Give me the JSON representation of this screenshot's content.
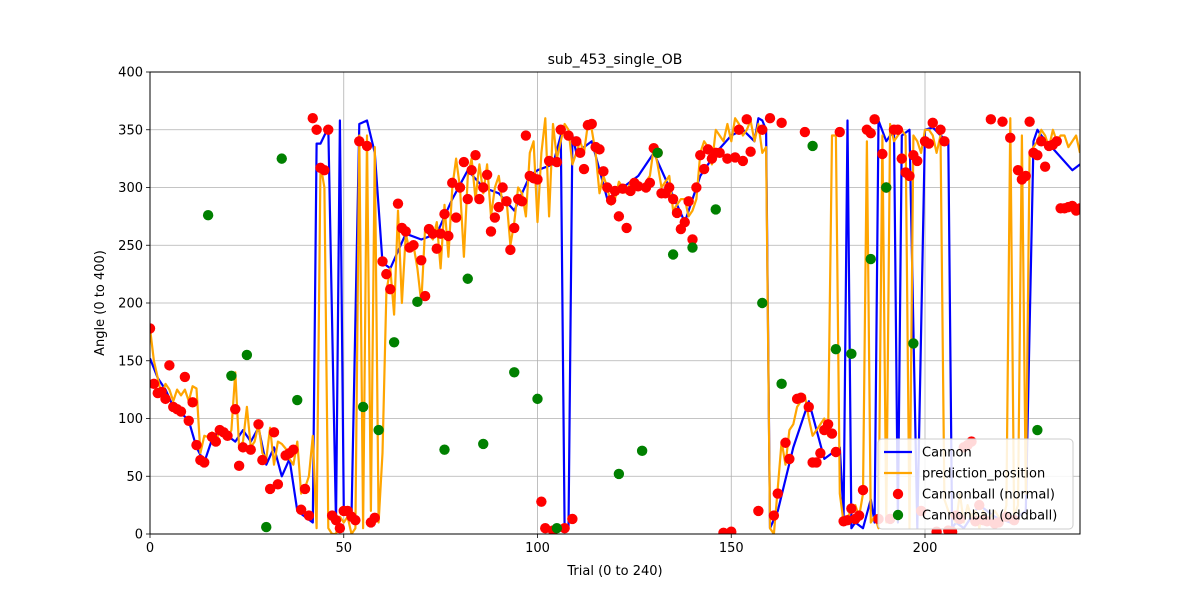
{
  "chart_data": {
    "type": "line",
    "title": "sub_453_single_OB",
    "xlabel": "Trial (0 to 240)",
    "ylabel": "Angle (0 to 400)",
    "xlim": [
      0,
      240
    ],
    "ylim": [
      0,
      400
    ],
    "xticks": [
      0,
      50,
      100,
      150,
      200
    ],
    "yticks": [
      0,
      50,
      100,
      150,
      200,
      250,
      300,
      350,
      400
    ],
    "grid": true,
    "legend_position": "bottom-right",
    "series": [
      {
        "name": "Cannon",
        "kind": "line",
        "color": "#0000ff",
        "x": [
          0,
          2,
          4,
          6,
          8,
          10,
          12,
          14,
          16,
          18,
          20,
          22,
          24,
          26,
          28,
          30,
          32,
          34,
          36,
          38,
          40,
          42,
          43,
          44,
          46,
          48,
          49,
          50,
          52,
          54,
          56,
          58,
          60,
          62,
          66,
          70,
          74,
          78,
          82,
          86,
          90,
          94,
          98,
          100,
          104,
          106,
          107,
          108,
          109,
          110,
          114,
          118,
          122,
          126,
          130,
          134,
          138,
          142,
          146,
          150,
          153,
          156,
          157,
          158,
          159,
          160,
          162,
          166,
          170,
          174,
          178,
          179,
          180,
          181,
          182,
          184,
          186,
          187,
          188,
          190,
          192,
          193,
          194,
          196,
          198,
          200,
          202,
          204,
          206,
          207,
          208,
          210,
          214,
          218,
          222,
          226,
          228,
          229,
          230,
          234,
          238,
          240
        ],
        "y": [
          152,
          135,
          125,
          110,
          105,
          98,
          75,
          62,
          82,
          90,
          85,
          80,
          90,
          80,
          92,
          60,
          75,
          50,
          65,
          20,
          15,
          10,
          338,
          338,
          352,
          10,
          358,
          20,
          15,
          355,
          358,
          330,
          235,
          230,
          260,
          255,
          260,
          290,
          315,
          300,
          295,
          280,
          310,
          315,
          320,
          345,
          5,
          5,
          345,
          330,
          340,
          290,
          300,
          310,
          330,
          300,
          270,
          310,
          330,
          345,
          350,
          340,
          360,
          358,
          350,
          5,
          20,
          75,
          115,
          65,
          75,
          15,
          358,
          5,
          10,
          5,
          30,
          10,
          358,
          340,
          350,
          10,
          345,
          350,
          5,
          350,
          352,
          345,
          340,
          5,
          10,
          5,
          25,
          15,
          10,
          20,
          340,
          350,
          345,
          330,
          315,
          320
        ]
      },
      {
        "name": "prediction_position",
        "kind": "line",
        "color": "#ffa500",
        "x": [
          0,
          1,
          2,
          3,
          4,
          5,
          6,
          7,
          8,
          9,
          10,
          11,
          12,
          13,
          14,
          15,
          16,
          17,
          18,
          19,
          20,
          21,
          22,
          23,
          24,
          25,
          26,
          27,
          28,
          29,
          30,
          31,
          32,
          33,
          34,
          35,
          36,
          37,
          38,
          39,
          40,
          41,
          42,
          43,
          44,
          45,
          46,
          47,
          48,
          49,
          50,
          51,
          52,
          53,
          54,
          55,
          56,
          57,
          58,
          59,
          60,
          61,
          62,
          63,
          64,
          65,
          66,
          67,
          68,
          69,
          70,
          71,
          72,
          73,
          74,
          75,
          76,
          77,
          78,
          79,
          80,
          81,
          82,
          83,
          84,
          85,
          86,
          87,
          88,
          89,
          90,
          91,
          92,
          93,
          94,
          95,
          96,
          97,
          98,
          99,
          100,
          101,
          102,
          103,
          104,
          105,
          106,
          107,
          108,
          109,
          110,
          111,
          112,
          113,
          114,
          115,
          116,
          117,
          118,
          119,
          120,
          121,
          122,
          123,
          124,
          125,
          126,
          127,
          128,
          129,
          130,
          131,
          132,
          133,
          134,
          135,
          136,
          137,
          138,
          139,
          140,
          141,
          142,
          143,
          144,
          145,
          146,
          147,
          148,
          149,
          150,
          151,
          152,
          153,
          154,
          155,
          156,
          157,
          158,
          159,
          160,
          161,
          162,
          163,
          164,
          165,
          166,
          167,
          168,
          169,
          170,
          171,
          172,
          173,
          174,
          175,
          176,
          177,
          178,
          179,
          180,
          181,
          182,
          183,
          184,
          185,
          186,
          187,
          188,
          189,
          190,
          191,
          192,
          193,
          194,
          195,
          196,
          197,
          198,
          199,
          200,
          201,
          202,
          203,
          204,
          205,
          206,
          207,
          208,
          209,
          210,
          211,
          212,
          213,
          214,
          215,
          216,
          217,
          218,
          219,
          220,
          221,
          222,
          223,
          224,
          225,
          226,
          227,
          228,
          229,
          230,
          231,
          232,
          233,
          234,
          235,
          236,
          237,
          238,
          239,
          240
        ],
        "y": [
          178,
          150,
          135,
          120,
          130,
          125,
          115,
          125,
          120,
          125,
          115,
          128,
          126,
          70,
          85,
          84,
          88,
          80,
          90,
          84,
          83,
          90,
          140,
          75,
          80,
          110,
          75,
          80,
          95,
          70,
          65,
          92,
          60,
          80,
          78,
          74,
          65,
          60,
          80,
          35,
          40,
          50,
          85,
          5,
          320,
          300,
          5,
          0,
          0,
          15,
          10,
          15,
          0,
          5,
          345,
          5,
          345,
          20,
          335,
          10,
          70,
          210,
          230,
          190,
          280,
          200,
          260,
          245,
          250,
          230,
          200,
          265,
          260,
          255,
          270,
          230,
          285,
          240,
          300,
          325,
          300,
          240,
          310,
          325,
          290,
          320,
          295,
          320,
          275,
          300,
          310,
          285,
          290,
          250,
          270,
          300,
          295,
          275,
          330,
          340,
          270,
          330,
          360,
          275,
          355,
          325,
          340,
          355,
          350,
          320,
          330,
          340,
          330,
          355,
          350,
          330,
          295,
          310,
          300,
          285,
          290,
          305,
          300,
          295,
          305,
          300,
          305,
          300,
          305,
          310,
          335,
          320,
          300,
          305,
          310,
          280,
          285,
          290,
          290,
          275,
          280,
          290,
          330,
          340,
          335,
          320,
          350,
          345,
          340,
          355,
          340,
          360,
          355,
          345,
          350,
          358,
          340,
          355,
          330,
          335,
          5,
          0,
          40,
          80,
          60,
          90,
          95,
          110,
          115,
          120,
          100,
          85,
          90,
          95,
          100,
          85,
          345,
          345,
          35,
          10,
          15,
          20,
          25,
          15,
          35,
          340,
          10,
          15,
          5,
          345,
          10,
          355,
          340,
          345,
          350,
          345,
          5,
          345,
          340,
          330,
          350,
          350,
          345,
          330,
          345,
          30,
          20,
          15,
          10,
          35,
          10,
          25,
          15,
          20,
          5,
          20,
          10,
          15,
          20,
          15,
          10,
          25,
          360,
          15,
          25,
          345,
          35,
          330,
          335,
          340,
          350,
          345,
          335,
          350,
          340,
          345,
          345,
          335,
          340,
          345,
          330
        ]
      },
      {
        "name": "Cannonball (normal)",
        "kind": "scatter",
        "color": "#ff0000",
        "x": [
          0,
          1,
          2,
          3,
          4,
          5,
          6,
          7,
          8,
          9,
          10,
          11,
          12,
          13,
          14,
          16,
          17,
          18,
          19,
          20,
          22,
          23,
          24,
          26,
          28,
          29,
          31,
          32,
          33,
          35,
          36,
          37,
          39,
          40,
          41,
          42,
          43,
          44,
          45,
          46,
          47,
          48,
          49,
          50,
          51,
          52,
          53,
          54,
          56,
          57,
          58,
          60,
          61,
          62,
          64,
          65,
          66,
          67,
          68,
          70,
          71,
          72,
          73,
          74,
          75,
          76,
          77,
          78,
          79,
          80,
          81,
          82,
          83,
          84,
          85,
          86,
          87,
          88,
          89,
          90,
          91,
          92,
          93,
          94,
          95,
          96,
          97,
          98,
          99,
          100,
          101,
          102,
          103,
          104,
          105,
          106,
          107,
          108,
          109,
          110,
          111,
          112,
          113,
          114,
          115,
          116,
          117,
          118,
          119,
          120,
          121,
          122,
          123,
          124,
          125,
          126,
          128,
          129,
          130,
          131,
          132,
          133,
          134,
          135,
          136,
          137,
          138,
          139,
          140,
          141,
          142,
          143,
          144,
          145,
          146,
          147,
          148,
          149,
          150,
          151,
          152,
          153,
          154,
          155,
          157,
          158,
          160,
          161,
          162,
          163,
          164,
          165,
          167,
          168,
          169,
          170,
          171,
          172,
          173,
          174,
          175,
          176,
          177,
          178,
          179,
          180,
          181,
          182,
          183,
          184,
          185,
          186,
          187,
          188,
          189,
          190,
          191,
          192,
          193,
          194,
          195,
          196,
          197,
          198,
          199,
          200,
          201,
          202,
          203,
          204,
          205,
          206,
          207,
          208,
          209,
          210,
          211,
          212,
          213,
          214,
          215,
          216,
          217,
          218,
          219,
          220,
          221,
          222,
          223,
          224,
          225,
          226,
          227,
          228,
          229,
          230,
          231,
          232,
          233,
          234,
          235,
          236,
          237,
          238,
          239,
          240
        ],
        "y": [
          178,
          130,
          122,
          123,
          117,
          146,
          110,
          108,
          106,
          136,
          98,
          114,
          77,
          64,
          62,
          84,
          80,
          90,
          88,
          85,
          108,
          59,
          75,
          73,
          95,
          64,
          39,
          88,
          43,
          68,
          70,
          73,
          21,
          39,
          16,
          360,
          350,
          317,
          315,
          350,
          16,
          12,
          5,
          20,
          20,
          15,
          12,
          340,
          336,
          10,
          14,
          236,
          225,
          212,
          286,
          265,
          262,
          248,
          250,
          237,
          206,
          264,
          260,
          247,
          260,
          277,
          258,
          304,
          274,
          300,
          322,
          290,
          315,
          328,
          290,
          300,
          311,
          262,
          274,
          283,
          300,
          288,
          246,
          265,
          290,
          288,
          345,
          310,
          308,
          307,
          28,
          5,
          323,
          3,
          322,
          350,
          5,
          345,
          13,
          340,
          330,
          316,
          354,
          355,
          335,
          333,
          314,
          300,
          289,
          297,
          275,
          299,
          265,
          297,
          304,
          301,
          300,
          304,
          334,
          330,
          295,
          295,
          300,
          290,
          278,
          264,
          270,
          288,
          255,
          300,
          328,
          316,
          333,
          325,
          330,
          330,
          1,
          325,
          2,
          326,
          350,
          323,
          359,
          331,
          20,
          350,
          360,
          16,
          35,
          356,
          79,
          65,
          117,
          118,
          348,
          110,
          62,
          62,
          70,
          90,
          95,
          87,
          71,
          348,
          11,
          12,
          22,
          13,
          16,
          38,
          350,
          347,
          359,
          13,
          329,
          300,
          13,
          350,
          350,
          325,
          313,
          310,
          328,
          323,
          20,
          340,
          338,
          356,
          2,
          350,
          340,
          3,
          2,
          16,
          13,
          75,
          77,
          80,
          11,
          25,
          12,
          11,
          359,
          9,
          10,
          357,
          15,
          343,
          12,
          315,
          307,
          310,
          357,
          330,
          328,
          340,
          318,
          336,
          337,
          340,
          282,
          282,
          283,
          284,
          280,
          282
        ]
      },
      {
        "name": "Cannonball (oddball)",
        "kind": "scatter",
        "color": "#008000",
        "x": [
          15,
          21,
          25,
          30,
          34,
          38,
          55,
          59,
          63,
          69,
          76,
          82,
          86,
          94,
          100,
          105,
          121,
          127,
          131,
          135,
          140,
          146,
          158,
          163,
          171,
          177,
          181,
          186,
          190,
          197,
          229
        ],
        "y": [
          276,
          137,
          155,
          6,
          325,
          116,
          110,
          90,
          166,
          201,
          73,
          221,
          78,
          140,
          117,
          5,
          52,
          72,
          330,
          242,
          248,
          281,
          200,
          130,
          336,
          160,
          156,
          238,
          300,
          165,
          90
        ]
      }
    ]
  }
}
